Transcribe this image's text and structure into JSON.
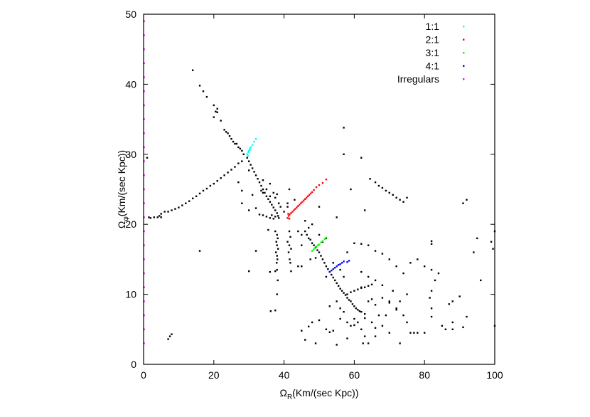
{
  "chart_data": {
    "type": "scatter",
    "title": "",
    "xlabel": {
      "symbol": "Ω",
      "sub": "R",
      "unit": "(Km/(sec Kpc))"
    },
    "ylabel": {
      "symbol": "Ω",
      "sub": "φ",
      "unit": "(Km/(sec Kpc))"
    },
    "xlim": [
      0,
      100
    ],
    "ylim": [
      0,
      50
    ],
    "xticks": [
      0,
      20,
      40,
      60,
      80,
      100
    ],
    "yticks": [
      0,
      10,
      20,
      30,
      40,
      50
    ],
    "grid": false,
    "legend_position": "top-right",
    "unlabeled_points": [
      [
        14,
        42
      ],
      [
        16,
        39.8
      ],
      [
        17,
        39
      ],
      [
        18,
        38.2
      ],
      [
        20,
        37
      ],
      [
        21,
        36.5
      ],
      [
        20,
        35.3
      ],
      [
        22,
        34.8
      ],
      [
        23,
        33.5
      ],
      [
        23.5,
        33.2
      ],
      [
        24,
        33
      ],
      [
        24.5,
        32.6
      ],
      [
        25,
        32.2
      ],
      [
        25.5,
        31.8
      ],
      [
        26,
        31.5
      ],
      [
        26.5,
        31.5
      ],
      [
        27,
        31
      ],
      [
        27.5,
        30.8
      ],
      [
        28,
        30.5
      ],
      [
        28.5,
        30
      ],
      [
        20.5,
        36.1
      ],
      [
        21,
        36
      ],
      [
        29.5,
        29.5
      ],
      [
        30,
        29
      ],
      [
        30.5,
        28.5
      ],
      [
        31,
        28
      ],
      [
        31.5,
        27.5
      ],
      [
        32,
        27
      ],
      [
        32.5,
        26.5
      ],
      [
        33,
        26
      ],
      [
        33.5,
        25.5
      ],
      [
        34,
        25
      ],
      [
        34.5,
        24.5
      ],
      [
        35,
        24
      ],
      [
        35.5,
        23.6
      ],
      [
        36,
        23.2
      ],
      [
        36.5,
        22.8
      ],
      [
        37,
        22.4
      ],
      [
        37.5,
        22
      ],
      [
        38,
        21.6
      ],
      [
        38.3,
        21.2
      ],
      [
        38.5,
        20.9
      ],
      [
        37,
        20.8
      ],
      [
        36,
        20.9
      ],
      [
        35,
        21.1
      ],
      [
        34,
        21.3
      ],
      [
        33,
        21.4
      ],
      [
        36.5,
        21.3
      ],
      [
        37.5,
        21.1
      ],
      [
        34,
        26.3
      ],
      [
        35,
        25
      ],
      [
        36,
        25.8
      ],
      [
        37,
        24.5
      ],
      [
        37.5,
        23.8
      ],
      [
        38,
        24.3
      ],
      [
        36,
        24
      ],
      [
        33.5,
        24.8
      ],
      [
        31,
        24.2
      ],
      [
        32,
        22.3
      ],
      [
        34,
        24.5
      ],
      [
        39,
        22.5
      ],
      [
        38.5,
        23
      ],
      [
        30,
        27.7
      ],
      [
        27,
        26
      ],
      [
        28,
        24.8
      ],
      [
        30,
        22
      ],
      [
        41,
        22.5
      ],
      [
        41.5,
        25
      ],
      [
        41,
        23
      ],
      [
        28,
        23
      ],
      [
        43,
        23.5
      ],
      [
        28,
        29
      ],
      [
        27,
        28.7
      ],
      [
        26,
        28.2
      ],
      [
        25,
        27.8
      ],
      [
        24,
        27.4
      ],
      [
        23,
        27
      ],
      [
        22,
        26.6
      ],
      [
        21,
        26.2
      ],
      [
        20,
        25.8
      ],
      [
        19,
        25.5
      ],
      [
        18,
        25.1
      ],
      [
        17,
        24.8
      ],
      [
        16,
        24.4
      ],
      [
        15,
        24
      ],
      [
        14,
        23.7
      ],
      [
        13,
        23.3
      ],
      [
        12,
        23
      ],
      [
        11,
        22.7
      ],
      [
        10,
        22.4
      ],
      [
        9,
        22.2
      ],
      [
        8,
        22
      ],
      [
        7,
        21.8
      ],
      [
        6,
        21.8
      ],
      [
        5,
        21.5
      ],
      [
        4.5,
        21.2
      ],
      [
        4,
        21
      ],
      [
        3,
        21
      ],
      [
        2,
        20.9
      ],
      [
        1.5,
        21
      ],
      [
        5,
        21
      ],
      [
        1,
        29.5
      ],
      [
        37.5,
        19
      ],
      [
        38,
        18.5
      ],
      [
        38.2,
        18
      ],
      [
        37.8,
        17.5
      ],
      [
        38,
        17
      ],
      [
        38.3,
        16.5
      ],
      [
        37.7,
        16
      ],
      [
        38,
        15.5
      ],
      [
        38.1,
        15
      ],
      [
        37.9,
        14.5
      ],
      [
        38,
        13.5
      ],
      [
        37.5,
        13.3
      ],
      [
        38.2,
        12
      ],
      [
        38,
        10
      ],
      [
        37.5,
        7.7
      ],
      [
        41.5,
        19
      ],
      [
        41.8,
        18.2
      ],
      [
        41,
        17.5
      ],
      [
        41.5,
        17
      ],
      [
        42,
        16.5
      ],
      [
        41.3,
        16
      ],
      [
        41.6,
        15
      ],
      [
        41.8,
        14.5
      ],
      [
        42,
        13.3
      ],
      [
        40,
        21.8
      ],
      [
        35.5,
        19.2
      ],
      [
        32,
        16.2
      ],
      [
        30,
        13.3
      ],
      [
        36,
        13.2
      ],
      [
        36.2,
        7.6
      ],
      [
        46,
        19
      ],
      [
        46.5,
        18.5
      ],
      [
        47,
        18
      ],
      [
        47.5,
        17.8
      ],
      [
        48,
        17.3
      ],
      [
        48.5,
        17
      ],
      [
        49,
        16.7
      ],
      [
        49.5,
        16.3
      ],
      [
        50,
        16
      ],
      [
        50.5,
        15.5
      ],
      [
        51,
        15
      ],
      [
        51.5,
        14.5
      ],
      [
        52,
        14
      ],
      [
        52.5,
        13.6
      ],
      [
        53,
        13.2
      ],
      [
        53.5,
        12.8
      ],
      [
        54,
        12.4
      ],
      [
        54.5,
        12
      ],
      [
        55,
        11.6
      ],
      [
        55.5,
        11.2
      ],
      [
        56,
        10.8
      ],
      [
        56.5,
        10.5
      ],
      [
        57,
        10.2
      ],
      [
        57.5,
        9.9
      ],
      [
        58,
        9.5
      ],
      [
        58.5,
        9.2
      ],
      [
        59,
        9
      ],
      [
        59.5,
        8.6
      ],
      [
        60,
        8.3
      ],
      [
        60.5,
        8
      ],
      [
        61,
        7.8
      ],
      [
        61.5,
        7.6
      ],
      [
        62,
        7.5
      ],
      [
        63,
        7.2
      ],
      [
        58,
        10
      ],
      [
        59,
        10.3
      ],
      [
        60,
        10.5
      ],
      [
        61,
        10.7
      ],
      [
        62,
        10.9
      ],
      [
        63,
        11
      ],
      [
        64,
        11.2
      ],
      [
        65,
        11.4
      ],
      [
        44,
        19
      ],
      [
        45,
        18.5
      ],
      [
        47,
        19.5
      ],
      [
        48,
        20
      ],
      [
        46,
        20.5
      ],
      [
        45,
        17
      ],
      [
        50,
        18.5
      ],
      [
        51,
        17.5
      ],
      [
        52,
        18
      ],
      [
        49,
        15.2
      ],
      [
        47.5,
        15
      ],
      [
        44,
        14
      ],
      [
        45,
        14
      ],
      [
        52,
        12.5
      ],
      [
        54,
        14.5
      ],
      [
        56,
        13.5
      ],
      [
        57,
        12.5
      ],
      [
        55,
        9
      ],
      [
        53,
        8.3
      ],
      [
        56,
        8
      ],
      [
        57,
        7.5
      ],
      [
        58,
        6
      ],
      [
        59,
        5.5
      ],
      [
        60,
        6.5
      ],
      [
        61,
        6
      ],
      [
        62,
        5
      ],
      [
        63,
        4
      ],
      [
        64,
        3
      ],
      [
        65,
        6
      ],
      [
        66,
        5.2
      ],
      [
        67,
        7
      ],
      [
        68,
        5.5
      ],
      [
        69,
        7
      ],
      [
        70,
        9
      ],
      [
        71,
        10.5
      ],
      [
        72,
        8
      ],
      [
        73,
        9
      ],
      [
        74,
        7
      ],
      [
        75,
        6
      ],
      [
        76,
        4.5
      ],
      [
        77,
        4.5
      ],
      [
        78,
        4.5
      ],
      [
        80,
        4.5
      ],
      [
        82,
        6.8
      ],
      [
        82,
        8
      ],
      [
        81.5,
        9.5
      ],
      [
        82,
        10.5
      ],
      [
        83,
        12
      ],
      [
        84,
        13
      ],
      [
        82,
        13.5
      ],
      [
        80,
        14
      ],
      [
        78,
        15
      ],
      [
        76,
        14.5
      ],
      [
        74,
        13
      ],
      [
        72,
        14
      ],
      [
        70,
        15
      ],
      [
        68,
        15.8
      ],
      [
        66,
        16.2
      ],
      [
        64,
        17
      ],
      [
        62,
        17.2
      ],
      [
        60,
        17.3
      ],
      [
        58,
        16
      ],
      [
        62,
        13.2
      ],
      [
        64,
        12.5
      ],
      [
        66,
        12
      ],
      [
        68,
        11.3
      ],
      [
        68,
        9.5
      ],
      [
        70,
        8.8
      ],
      [
        72,
        7.8
      ],
      [
        62,
        11
      ],
      [
        64,
        9
      ],
      [
        65,
        9.3
      ],
      [
        66,
        8.5
      ],
      [
        58,
        3.7
      ],
      [
        53,
        4.6
      ],
      [
        54,
        4.8
      ],
      [
        56,
        6.5
      ],
      [
        47,
        5.4
      ],
      [
        48,
        6
      ],
      [
        52,
        5
      ],
      [
        60,
        5.6
      ],
      [
        63,
        6.6
      ],
      [
        86,
        5
      ],
      [
        88,
        5
      ],
      [
        85,
        5.5
      ],
      [
        91,
        5.3
      ],
      [
        92,
        6.8
      ],
      [
        88,
        6
      ],
      [
        87,
        8.6
      ],
      [
        88,
        9
      ],
      [
        90,
        9.7
      ],
      [
        82,
        17.6
      ],
      [
        82,
        17.2
      ],
      [
        45,
        4.8
      ],
      [
        46,
        3.5
      ],
      [
        49,
        3
      ],
      [
        55,
        2.8
      ],
      [
        50,
        6.3
      ],
      [
        62.5,
        3
      ],
      [
        70,
        4.5
      ],
      [
        66,
        4
      ],
      [
        73,
        3
      ],
      [
        75,
        10
      ],
      [
        66,
        26
      ],
      [
        67,
        25.5
      ],
      [
        68,
        25.2
      ],
      [
        69,
        24.8
      ],
      [
        70,
        24.5
      ],
      [
        71,
        24.2
      ],
      [
        72,
        23.8
      ],
      [
        73,
        23.5
      ],
      [
        74,
        23.2
      ],
      [
        75,
        23.8
      ],
      [
        57,
        33.8
      ],
      [
        57,
        30
      ],
      [
        62,
        29.5
      ],
      [
        59,
        25
      ],
      [
        64.5,
        26.5
      ],
      [
        63,
        22
      ],
      [
        55,
        21
      ],
      [
        50,
        22.5
      ],
      [
        91,
        23
      ],
      [
        92,
        23.5
      ],
      [
        95,
        18
      ],
      [
        99,
        17.5
      ],
      [
        100,
        19
      ],
      [
        99.5,
        16.5
      ],
      [
        100,
        5.5
      ],
      [
        94,
        16
      ],
      [
        96,
        12
      ],
      [
        7,
        3.6
      ],
      [
        7.5,
        4
      ],
      [
        8,
        4.3
      ],
      [
        16,
        16.2
      ]
    ],
    "series": [
      {
        "name": "1:1",
        "color": "#00ffff",
        "points": [
          [
            29.5,
            30
          ],
          [
            29.8,
            30.3
          ],
          [
            30,
            30.5
          ],
          [
            30.3,
            30.8
          ],
          [
            30.5,
            31
          ],
          [
            31,
            31.3
          ],
          [
            31.5,
            31.8
          ],
          [
            32,
            32.2
          ],
          [
            29.7,
            29.8
          ],
          [
            30.2,
            30.6
          ]
        ]
      },
      {
        "name": "2:1",
        "color": "#ff0000",
        "points": [
          [
            41,
            20.9
          ],
          [
            41.3,
            21.2
          ],
          [
            41.6,
            21.4
          ],
          [
            42,
            21.6
          ],
          [
            42.4,
            21.8
          ],
          [
            42.8,
            22
          ],
          [
            43.2,
            22.2
          ],
          [
            43.6,
            22.4
          ],
          [
            44,
            22.6
          ],
          [
            44.4,
            22.8
          ],
          [
            44.8,
            23
          ],
          [
            45.2,
            23.2
          ],
          [
            45.6,
            23.4
          ],
          [
            46,
            23.6
          ],
          [
            46.4,
            23.8
          ],
          [
            46.8,
            24
          ],
          [
            47.2,
            24.2
          ],
          [
            47.6,
            24.4
          ],
          [
            48,
            24.6
          ],
          [
            48.5,
            24.9
          ],
          [
            49.2,
            25.3
          ],
          [
            50,
            25.6
          ],
          [
            51,
            25.9
          ],
          [
            52,
            26.4
          ],
          [
            41.2,
            21.5
          ],
          [
            41.5,
            20.8
          ]
        ]
      },
      {
        "name": "3:1",
        "color": "#00ff00",
        "points": [
          [
            48,
            16.2
          ],
          [
            48.4,
            16.4
          ],
          [
            48.8,
            16.6
          ],
          [
            49.2,
            16.8
          ],
          [
            49.6,
            17
          ],
          [
            50,
            17.1
          ],
          [
            50.5,
            17.4
          ],
          [
            51,
            17.6
          ],
          [
            51.6,
            17.9
          ],
          [
            52,
            18.1
          ]
        ]
      },
      {
        "name": "4:1",
        "color": "#0000ff",
        "points": [
          [
            53,
            13.2
          ],
          [
            53.5,
            13.4
          ],
          [
            54,
            13.6
          ],
          [
            54.5,
            13.8
          ],
          [
            55,
            14
          ],
          [
            55.5,
            14.2
          ],
          [
            56,
            14.3
          ],
          [
            56.5,
            14.5
          ],
          [
            57,
            14.7
          ],
          [
            58,
            14.6
          ],
          [
            58.5,
            14.8
          ]
        ]
      },
      {
        "name": "Irregulars",
        "color": "#ff00ff",
        "points": [
          [
            0.1,
            3
          ],
          [
            0.1,
            5
          ],
          [
            0.1,
            7
          ],
          [
            0.1,
            9
          ],
          [
            0.1,
            11
          ],
          [
            0.1,
            13
          ],
          [
            0.1,
            15
          ],
          [
            0.1,
            17
          ],
          [
            0.1,
            19
          ],
          [
            0.1,
            21
          ],
          [
            0.1,
            23
          ],
          [
            0.1,
            25
          ],
          [
            0.1,
            27
          ],
          [
            0.1,
            29
          ],
          [
            0.1,
            31
          ],
          [
            0.1,
            33
          ],
          [
            0.1,
            35
          ],
          [
            0.1,
            37
          ],
          [
            0.1,
            39
          ],
          [
            0.1,
            41
          ],
          [
            0.1,
            43
          ],
          [
            0.1,
            45
          ],
          [
            0.1,
            47
          ],
          [
            0.1,
            49
          ]
        ]
      }
    ]
  }
}
